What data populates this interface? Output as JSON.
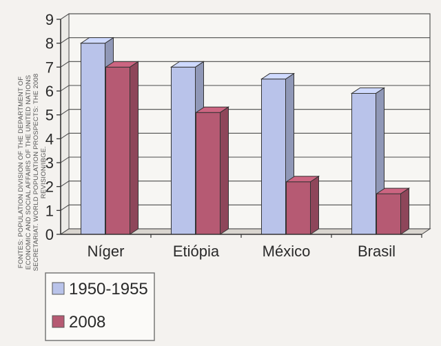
{
  "source_note": {
    "lines": [
      "FONTES: POPULATION DIVISION OF THE DEPARTMENT OF",
      "ECONOMIC AND SOCIAL AFFAIRS OF THE UNITED NATIONS",
      "SECRETARIAT. WORLD POPULATION PROSPECTS: THE 2008",
      "REVISION/IBGE."
    ]
  },
  "chart_data": {
    "type": "bar",
    "title": "",
    "xlabel": "",
    "ylabel": "",
    "categories": [
      "Níger",
      "Etiópia",
      "México",
      "Brasil"
    ],
    "series": [
      {
        "name": "1950-1955",
        "values": [
          8.0,
          7.0,
          6.5,
          5.9
        ],
        "color": "#b9c3ea"
      },
      {
        "name": "2008",
        "values": [
          7.0,
          5.1,
          2.2,
          1.7
        ],
        "color": "#b65a73"
      }
    ],
    "ylim": [
      0,
      9
    ],
    "yticks": [
      0,
      1,
      2,
      3,
      4,
      5,
      6,
      7,
      8,
      9
    ],
    "grid": true,
    "legend_position": "bottom-left"
  }
}
